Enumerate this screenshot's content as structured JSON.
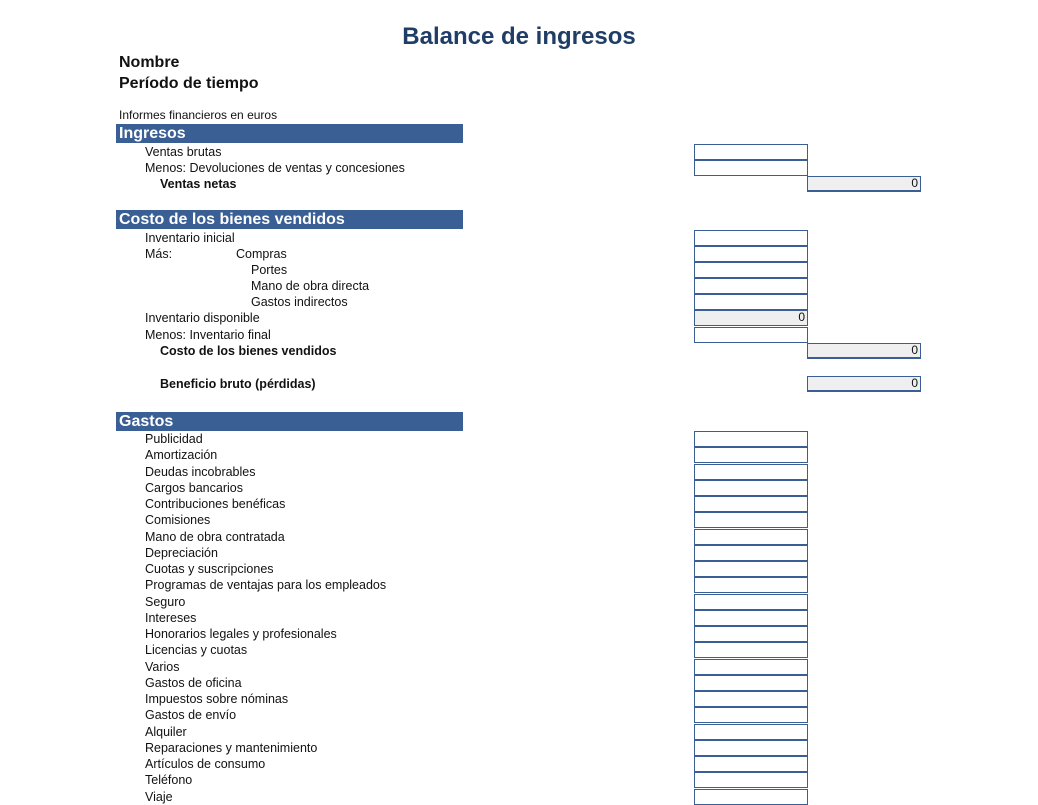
{
  "title": "Balance de ingresos",
  "name_label": "Nombre",
  "period_label": "Período de tiempo",
  "currency_note": "Informes financieros en euros",
  "colors": {
    "header_bar": "#3a5f94",
    "title": "#1f3d66",
    "input_border": "#3a5f94",
    "computed_fill": "#efefef"
  },
  "sections": {
    "ingresos": "Ingresos",
    "costo": "Costo de los bienes vendidos",
    "gastos": "Gastos"
  },
  "ingresos_rows": [
    {
      "label": "Ventas brutas",
      "style": "item",
      "field": "input",
      "value": ""
    },
    {
      "label": "Menos: Devoluciones de ventas y concesiones",
      "style": "item",
      "field": "input",
      "value": ""
    },
    {
      "label": "Ventas netas",
      "style": "bold",
      "field": "total",
      "value": "0"
    }
  ],
  "costo_rows": [
    {
      "label": "Inventario inicial",
      "style": "item",
      "field": "input",
      "value": ""
    },
    {
      "label": "Más:",
      "sublabel": "Compras",
      "style": "item",
      "field": "input",
      "value": ""
    },
    {
      "label": "Portes",
      "style": "sub",
      "field": "input",
      "value": ""
    },
    {
      "label": "Mano de obra directa",
      "style": "sub",
      "field": "input",
      "value": ""
    },
    {
      "label": "Gastos indirectos",
      "style": "sub",
      "field": "input",
      "value": ""
    },
    {
      "label": "Inventario disponible",
      "style": "item",
      "field": "computed",
      "value": "0"
    },
    {
      "label": "Menos: Inventario final",
      "style": "item",
      "field": "input",
      "value": ""
    },
    {
      "label": "Costo de los bienes vendidos",
      "style": "bold",
      "field": "total",
      "value": "0"
    },
    {
      "label": "Beneficio bruto (pérdidas)",
      "style": "bold",
      "field": "total",
      "value": "0"
    }
  ],
  "gastos_rows": [
    "Publicidad",
    "Amortización",
    "Deudas incobrables",
    "Cargos bancarios",
    "Contribuciones benéficas",
    "Comisiones",
    "Mano de obra contratada",
    "Depreciación",
    "Cuotas y suscripciones",
    "Programas de ventajas para los empleados",
    "Seguro",
    "Intereses",
    "Honorarios legales y profesionales",
    "Licencias y cuotas",
    "Varios",
    "Gastos de oficina",
    "Impuestos sobre nóminas",
    "Gastos de envío",
    "Alquiler",
    "Reparaciones y mantenimiento",
    "Artículos de consumo",
    "Teléfono",
    "Viaje"
  ]
}
